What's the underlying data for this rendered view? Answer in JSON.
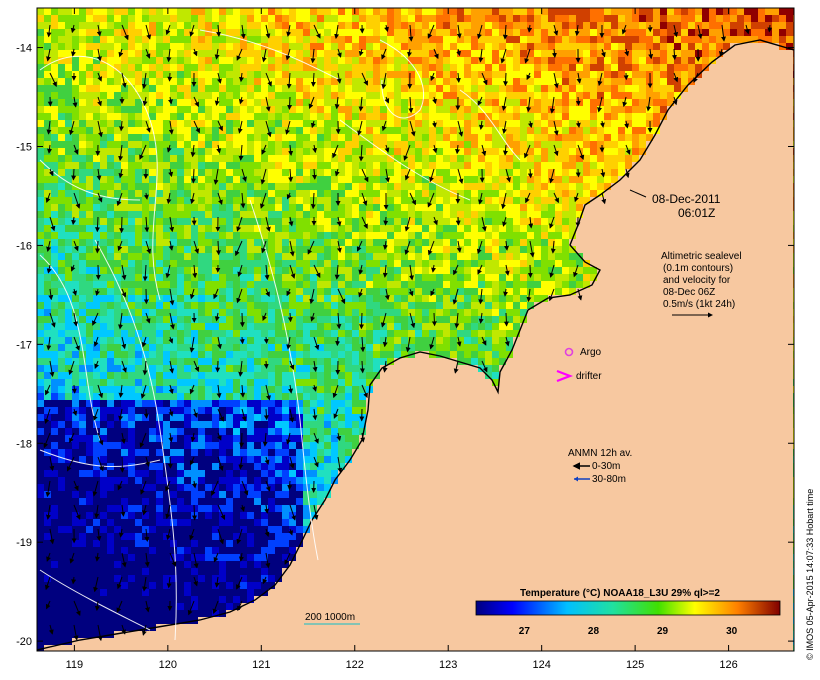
{
  "axes": {
    "x_ticks": [
      "119",
      "120",
      "121",
      "122",
      "123",
      "124",
      "125",
      "126"
    ],
    "y_ticks": [
      "-14",
      "-15",
      "-16",
      "-17",
      "-18",
      "-19",
      "-20"
    ],
    "lon_range": [
      118.6,
      126.7
    ],
    "lat_range": [
      -13.6,
      -20.1
    ]
  },
  "annotations": {
    "date": "08-Dec-2011",
    "time": "06:01Z",
    "altimetry_lines": [
      "Altimetric sealevel",
      "(0.1m contours)",
      "and velocity for",
      "08-Dec 06Z",
      "0.5m/s (1kt 24h)"
    ],
    "argo_label": "Argo",
    "drifter_label": "drifter",
    "anmn_title": "ANMN 12h av.",
    "anmn_shallow": "0-30m",
    "anmn_deep": "30-80m",
    "depth_legend": "200  1000m"
  },
  "colorbar": {
    "title": "Temperature (°C) NOAA18_L3U 29% ql>=2",
    "labels": [
      "27",
      "28",
      "29",
      "30"
    ],
    "range": [
      26.3,
      30.7
    ]
  },
  "credit": "© IMOS 05-Apr-2015 14:07:33 Hobart time",
  "colors": {
    "land": "#f7c8a0",
    "argo": "#e040e0",
    "drifter": "#ff00ff",
    "anmn_shallow": "#000000",
    "anmn_deep": "#1040c0",
    "isobath": "#40c0c0"
  }
}
